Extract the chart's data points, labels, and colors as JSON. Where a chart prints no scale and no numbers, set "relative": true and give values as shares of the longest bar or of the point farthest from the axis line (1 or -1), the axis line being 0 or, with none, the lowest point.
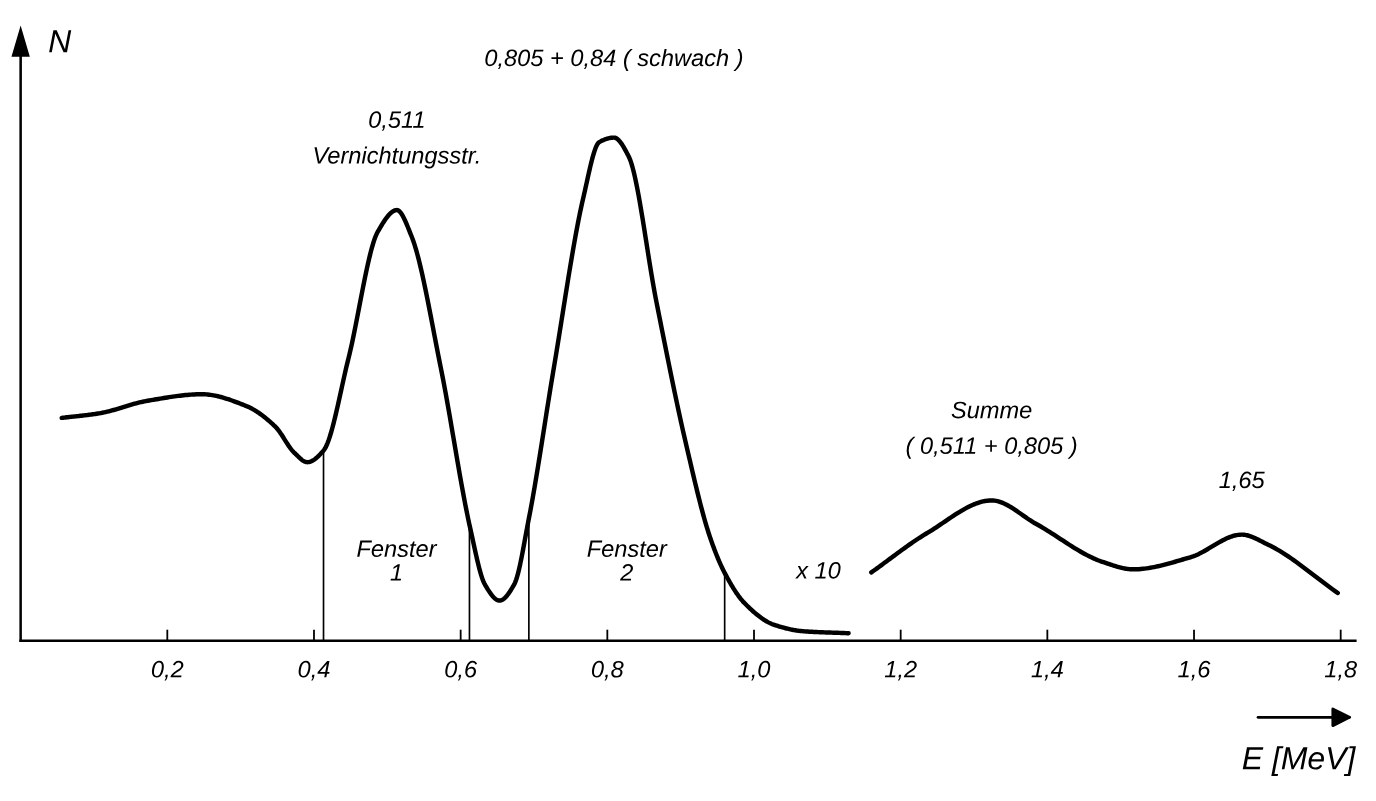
{
  "chart_data": {
    "type": "line",
    "relative": true,
    "xlabel": "E [MeV]",
    "ylabel": "N",
    "xlim": [
      0,
      1.82
    ],
    "xticks": [
      {
        "value": 0.2,
        "label": "0,2"
      },
      {
        "value": 0.4,
        "label": "0,4"
      },
      {
        "value": 0.6,
        "label": "0,6"
      },
      {
        "value": 0.8,
        "label": "0,8"
      },
      {
        "value": 1.0,
        "label": "1,0"
      },
      {
        "value": 1.2,
        "label": "1,2"
      },
      {
        "value": 1.4,
        "label": "1,4"
      },
      {
        "value": 1.6,
        "label": "1,6"
      },
      {
        "value": 1.8,
        "label": "1,8"
      }
    ],
    "series": [
      {
        "color": "#000000",
        "x": [
          0.056,
          0.107,
          0.173,
          0.247,
          0.307,
          0.347,
          0.373,
          0.391,
          0.413,
          0.447,
          0.487,
          0.513,
          0.533,
          0.573,
          0.613,
          0.633,
          0.653,
          0.673,
          0.693,
          0.727,
          0.767,
          0.789,
          0.809,
          0.829,
          0.867,
          0.907,
          0.94,
          0.96,
          0.987,
          1.027,
          1.067,
          1.129
        ],
        "values": [
          0.443,
          0.452,
          0.477,
          0.49,
          0.467,
          0.426,
          0.374,
          0.355,
          0.378,
          0.561,
          0.813,
          0.856,
          0.804,
          0.542,
          0.224,
          0.112,
          0.08,
          0.112,
          0.243,
          0.542,
          0.879,
          0.991,
          1.0,
          0.963,
          0.673,
          0.393,
          0.206,
          0.135,
          0.075,
          0.032,
          0.019,
          0.015
        ]
      },
      {
        "color": "#000000",
        "x": [
          1.16,
          1.237,
          1.324,
          1.385,
          1.475,
          1.517,
          1.595,
          1.665,
          1.701,
          1.796
        ],
        "values": [
          0.136,
          0.215,
          0.279,
          0.232,
          0.157,
          0.142,
          0.166,
          0.211,
          0.191,
          0.095
        ]
      }
    ],
    "ref_lines": [
      {
        "axis": "x",
        "value": 0.413
      },
      {
        "axis": "x",
        "value": 0.612
      },
      {
        "axis": "x",
        "value": 0.693
      },
      {
        "axis": "x",
        "value": 0.96
      }
    ],
    "annotations": [
      {
        "text": "0,511\nVernichtungsstr.",
        "x": 0.513,
        "y": 0.856
      },
      {
        "text": "0,805 + 0,84 ( schwach )",
        "x": 0.809,
        "y": 1.0
      },
      {
        "text": "Summe\n( 0,511 + 0,805 )",
        "x": 1.324,
        "y": 0.279
      },
      {
        "text": "1,65",
        "x": 1.665,
        "y": 0.211
      },
      {
        "text": "x 10",
        "x": 1.16,
        "y": 0.136
      },
      "Fenster\n1",
      "Fenster\n2"
    ],
    "grid": false,
    "legend": false,
    "line_style": "solid",
    "marker": "none"
  }
}
